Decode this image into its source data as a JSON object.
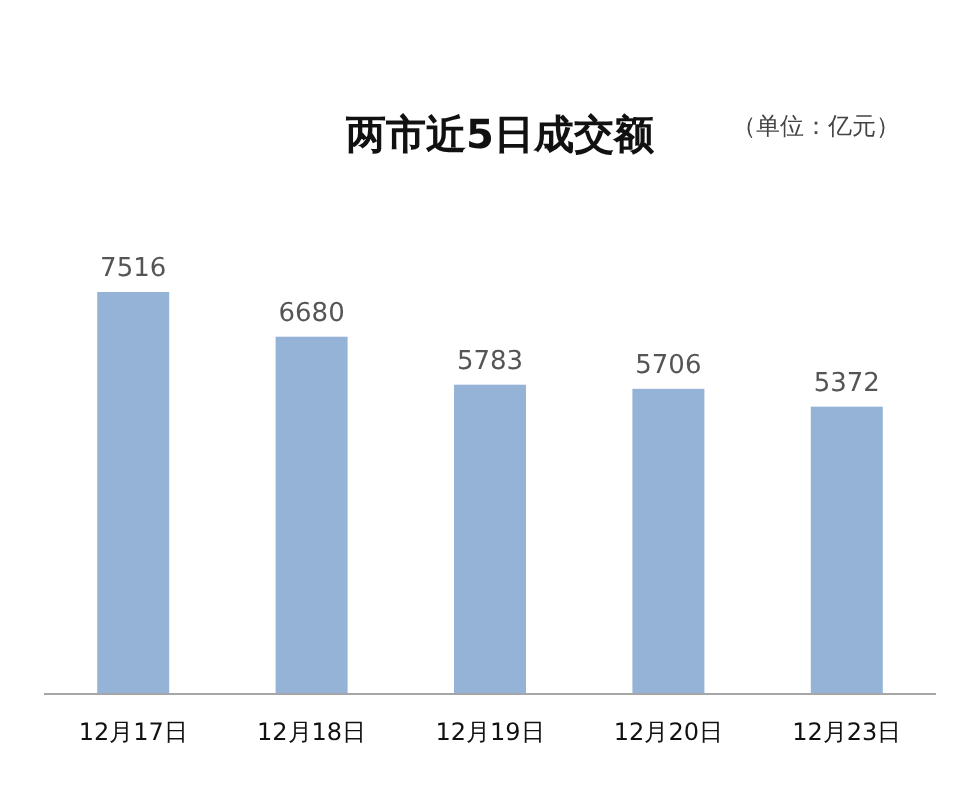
{
  "chart_data": {
    "type": "bar",
    "title": "两市近5日成交额",
    "subtitle": "（单位：亿元）",
    "categories": [
      "12月17日",
      "12月18日",
      "12月19日",
      "12月20日",
      "12月23日"
    ],
    "values": [
      7516,
      6680,
      5783,
      5706,
      5372
    ],
    "color": "#95b3d7",
    "data_labels": true
  }
}
